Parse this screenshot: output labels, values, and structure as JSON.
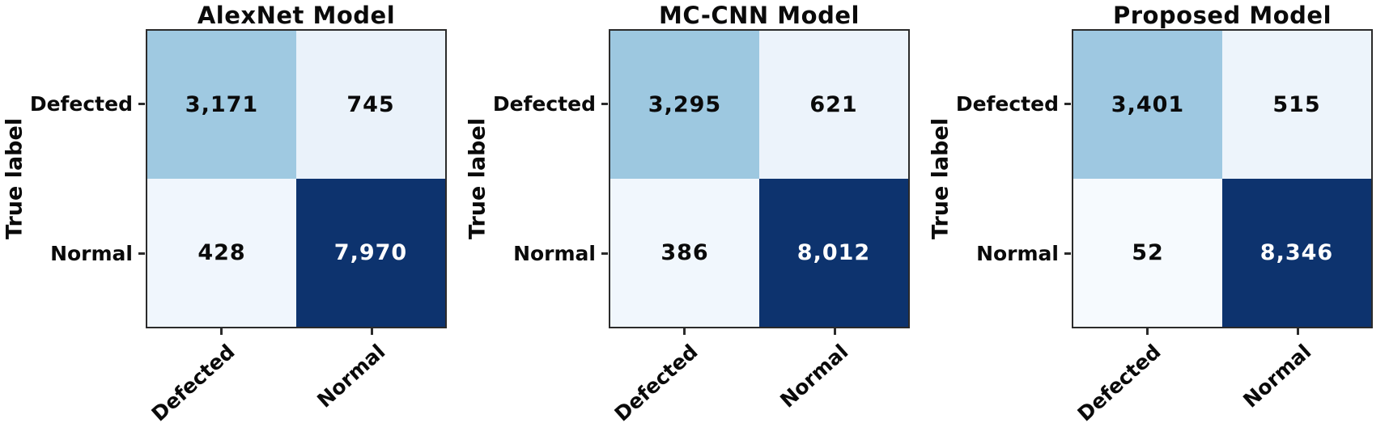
{
  "figure": {
    "background": "#ffffff",
    "axis_color": "#2b2b2b",
    "ylabel": "True label",
    "row_labels": [
      "Defected",
      "Normal"
    ],
    "col_labels": [
      "Defected",
      "Normal"
    ]
  },
  "matrices": [
    {
      "title": "AlexNet Model",
      "cells": [
        [
          {
            "value": "3,171",
            "bg": "#9fc9e1",
            "fg": "#0a0a0a"
          },
          {
            "value": "745",
            "bg": "#eaf2fa",
            "fg": "#0a0a0a"
          }
        ],
        [
          {
            "value": "428",
            "bg": "#f0f6fd",
            "fg": "#0a0a0a"
          },
          {
            "value": "7,970",
            "bg": "#0d336e",
            "fg": "#ffffff"
          }
        ]
      ]
    },
    {
      "title": "MC-CNN Model",
      "cells": [
        [
          {
            "value": "3,295",
            "bg": "#9dc8e0",
            "fg": "#0a0a0a"
          },
          {
            "value": "621",
            "bg": "#ecf3fb",
            "fg": "#0a0a0a"
          }
        ],
        [
          {
            "value": "386",
            "bg": "#f1f7fd",
            "fg": "#0a0a0a"
          },
          {
            "value": "8,012",
            "bg": "#0d336e",
            "fg": "#ffffff"
          }
        ]
      ]
    },
    {
      "title": "Proposed Model",
      "cells": [
        [
          {
            "value": "3,401",
            "bg": "#9ec8e1",
            "fg": "#0a0a0a"
          },
          {
            "value": "515",
            "bg": "#edf4fb",
            "fg": "#0a0a0a"
          }
        ],
        [
          {
            "value": "52",
            "bg": "#f6fafe",
            "fg": "#0a0a0a"
          },
          {
            "value": "8,346",
            "bg": "#0d336e",
            "fg": "#ffffff"
          }
        ]
      ]
    }
  ],
  "chart_data": [
    {
      "type": "heatmap",
      "title": "AlexNet Model",
      "xlabel": "",
      "ylabel": "True label",
      "x_categories": [
        "Defected",
        "Normal"
      ],
      "y_categories": [
        "Defected",
        "Normal"
      ],
      "values": [
        [
          3171,
          745
        ],
        [
          428,
          7970
        ]
      ],
      "colormap": "Blues",
      "grid": false,
      "legend": false
    },
    {
      "type": "heatmap",
      "title": "MC-CNN Model",
      "xlabel": "",
      "ylabel": "True label",
      "x_categories": [
        "Defected",
        "Normal"
      ],
      "y_categories": [
        "Defected",
        "Normal"
      ],
      "values": [
        [
          3295,
          621
        ],
        [
          386,
          8012
        ]
      ],
      "colormap": "Blues",
      "grid": false,
      "legend": false
    },
    {
      "type": "heatmap",
      "title": "Proposed Model",
      "xlabel": "",
      "ylabel": "True label",
      "x_categories": [
        "Defected",
        "Normal"
      ],
      "y_categories": [
        "Defected",
        "Normal"
      ],
      "values": [
        [
          3401,
          515
        ],
        [
          52,
          8346
        ]
      ],
      "colormap": "Blues",
      "grid": false,
      "legend": false
    }
  ]
}
